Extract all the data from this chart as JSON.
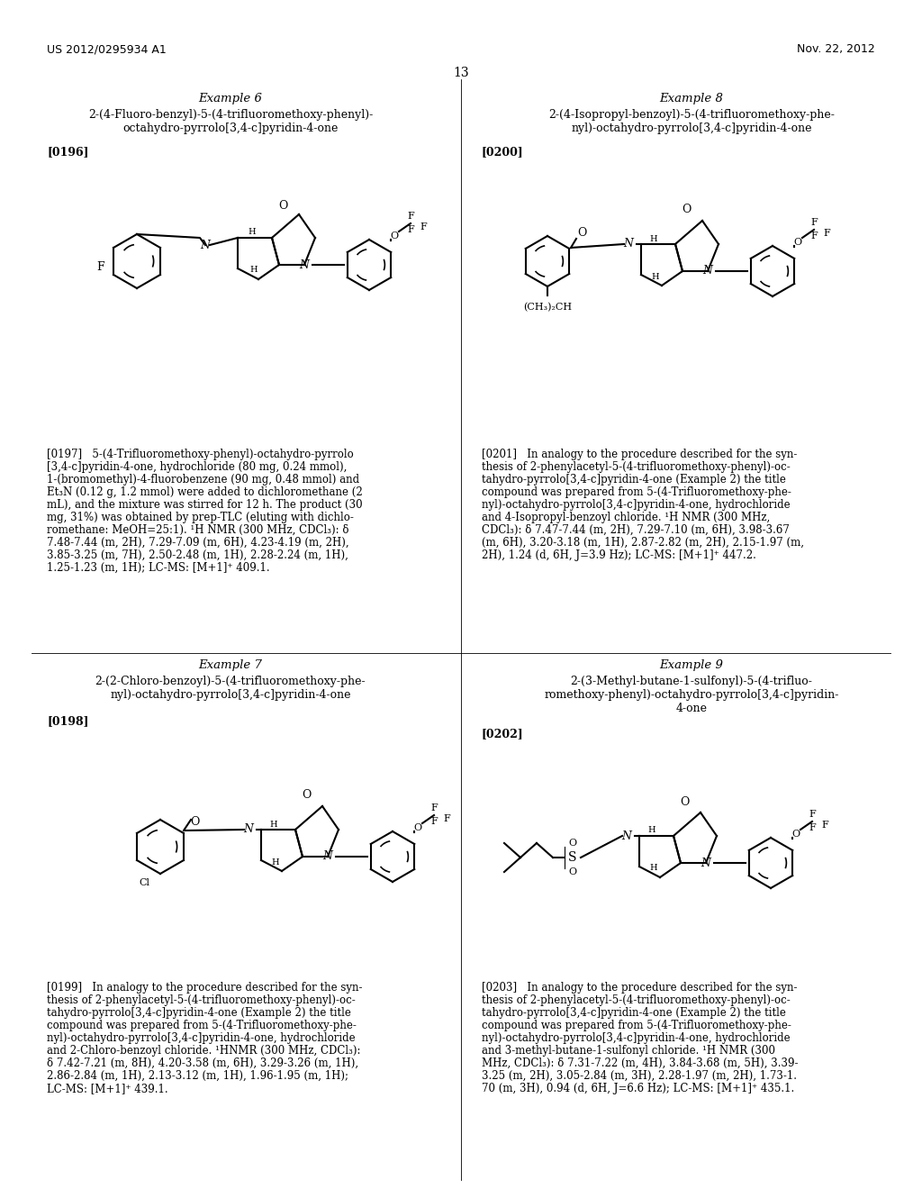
{
  "header_left": "US 2012/0295934 A1",
  "header_right": "Nov. 22, 2012",
  "page_number": "13",
  "background_color": "#ffffff",
  "text_color": "#000000",
  "example6_title": "Example 6",
  "example6_subtitle1": "2-(4-Fluoro-benzyl)-5-(4-trifluoromethoxy-phenyl)-",
  "example6_subtitle2": "octahydro-pyrrolo[3,4-c]pyridin-4-one",
  "example6_ref": "[0196]",
  "example6_desc": "[0197]   5-(4-Trifluoromethoxy-phenyl)-octahydro-pyrrolo\n[3,4-c]pyridin-4-one, hydrochloride (80 mg, 0.24 mmol),\n1-(bromomethyl)-4-fluorobenzene (90 mg, 0.48 mmol) and\nEt₃N (0.12 g, 1.2 mmol) were added to dichloromethane (2\nmL), and the mixture was stirred for 12 h. The product (30\nmg, 31%) was obtained by prep-TLC (eluting with dichlo-\nromethane: MeOH=25:1). ¹H NMR (300 MHz, CDCl₃): δ\n7.48-7.44 (m, 2H), 7.29-7.09 (m, 6H), 4.23-4.19 (m, 2H),\n3.85-3.25 (m, 7H), 2.50-2.48 (m, 1H), 2.28-2.24 (m, 1H),\n1.25-1.23 (m, 1H); LC-MS: [M+1]⁺ 409.1.",
  "example7_title": "Example 7",
  "example7_subtitle1": "2-(2-Chloro-benzoyl)-5-(4-trifluoromethoxy-phe-",
  "example7_subtitle2": "nyl)-octahydro-pyrrolo[3,4-c]pyridin-4-one",
  "example7_ref": "[0198]",
  "example7_desc": "[0199]   In analogy to the procedure described for the syn-\nthesis of 2-phenylacetyl-5-(4-trifluoromethoxy-phenyl)-oc-\ntahydro-pyrrolo[3,4-c]pyridin-4-one (Example 2) the title\ncompound was prepared from 5-(4-Trifluoromethoxy-phe-\nnyl)-octahydro-pyrrolo[3,4-c]pyridin-4-one, hydrochloride\nand 2-Chloro-benzoyl chloride. ¹HNMR (300 MHz, CDCl₃):\nδ 7.42-7.21 (m, 8H), 4.20-3.58 (m, 6H), 3.29-3.26 (m, 1H),\n2.86-2.84 (m, 1H), 2.13-3.12 (m, 1H), 1.96-1.95 (m, 1H);\nLC-MS: [M+1]⁺ 439.1.",
  "example8_title": "Example 8",
  "example8_subtitle1": "2-(4-Isopropyl-benzoyl)-5-(4-trifluoromethoxy-phe-",
  "example8_subtitle2": "nyl)-octahydro-pyrrolo[3,4-c]pyridin-4-one",
  "example8_ref": "[0200]",
  "example8_desc": "[0201]   In analogy to the procedure described for the syn-\nthesis of 2-phenylacetyl-5-(4-trifluoromethoxy-phenyl)-oc-\ntahydro-pyrrolo[3,4-c]pyridin-4-one (Example 2) the title\ncompound was prepared from 5-(4-Trifluoromethoxy-phe-\nnyl)-octahydro-pyrrolo[3,4-c]pyridin-4-one, hydrochloride\nand 4-Isopropyl-benzoyl chloride. ¹H NMR (300 MHz,\nCDCl₃): δ 7.47-7.44 (m, 2H), 7.29-7.10 (m, 6H), 3.98-3.67\n(m, 6H), 3.20-3.18 (m, 1H), 2.87-2.82 (m, 2H), 2.15-1.97 (m,\n2H), 1.24 (d, 6H, J=3.9 Hz); LC-MS: [M+1]⁺ 447.2.",
  "example9_title": "Example 9",
  "example9_subtitle1": "2-(3-Methyl-butane-1-sulfonyl)-5-(4-trifluo-",
  "example9_subtitle2": "romethoxy-phenyl)-octahydro-pyrrolo[3,4-c]pyridin-",
  "example9_subtitle3": "4-one",
  "example9_ref": "[0202]",
  "example9_desc": "[0203]   In analogy to the procedure described for the syn-\nthesis of 2-phenylacetyl-5-(4-trifluoromethoxy-phenyl)-oc-\ntahydro-pyrrolo[3,4-c]pyridin-4-one (Example 2) the title\ncompound was prepared from 5-(4-Trifluoromethoxy-phe-\nnyl)-octahydro-pyrrolo[3,4-c]pyridin-4-one, hydrochloride\nand 3-methyl-butane-1-sulfonyl chloride. ¹H NMR (300\nMHz, CDCl₃): δ 7.31-7.22 (m, 4H), 3.84-3.68 (m, 5H), 3.39-\n3.25 (m, 2H), 3.05-2.84 (m, 3H), 2.28-1.97 (m, 2H), 1.73-1.\n70 (m, 3H), 0.94 (d, 6H, J=6.6 Hz); LC-MS: [M+1]⁺ 435.1."
}
